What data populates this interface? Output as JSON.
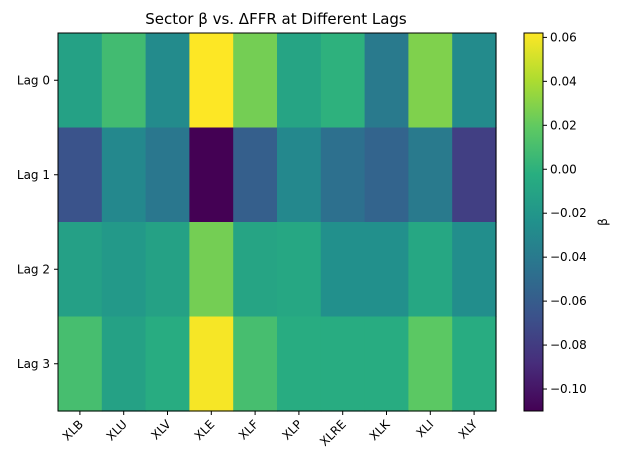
{
  "chart_data": {
    "type": "heatmap",
    "title": "Sector β vs. ΔFFR at Different Lags",
    "xlabel": "",
    "ylabel": "",
    "colorbar_label": "β",
    "colormap": "viridis",
    "color_range": [
      -0.11,
      0.062
    ],
    "colorbar_ticks": [
      {
        "value": 0.06,
        "label": "0.06"
      },
      {
        "value": 0.04,
        "label": "0.04"
      },
      {
        "value": 0.02,
        "label": "0.02"
      },
      {
        "value": 0.0,
        "label": "0.00"
      },
      {
        "value": -0.02,
        "label": "−0.02"
      },
      {
        "value": -0.04,
        "label": "−0.04"
      },
      {
        "value": -0.06,
        "label": "−0.06"
      },
      {
        "value": -0.08,
        "label": "−0.08"
      },
      {
        "value": -0.1,
        "label": "−0.10"
      }
    ],
    "x_categories": [
      "XLB",
      "XLU",
      "XLV",
      "XLE",
      "XLF",
      "XLP",
      "XLRE",
      "XLK",
      "XLI",
      "XLY"
    ],
    "y_categories": [
      "Lag 0",
      "Lag 1",
      "Lag 2",
      "Lag 3"
    ],
    "values": [
      [
        -0.012,
        0.008,
        -0.028,
        0.062,
        0.025,
        -0.01,
        0.0,
        -0.04,
        0.028,
        -0.028
      ],
      [
        -0.066,
        -0.03,
        -0.042,
        -0.11,
        -0.058,
        -0.03,
        -0.047,
        -0.055,
        -0.04,
        -0.078
      ],
      [
        -0.013,
        -0.018,
        -0.012,
        0.025,
        -0.01,
        -0.008,
        -0.025,
        -0.025,
        -0.008,
        -0.026
      ],
      [
        0.01,
        -0.012,
        -0.004,
        0.06,
        0.01,
        -0.004,
        -0.004,
        -0.004,
        0.018,
        -0.004
      ]
    ]
  }
}
